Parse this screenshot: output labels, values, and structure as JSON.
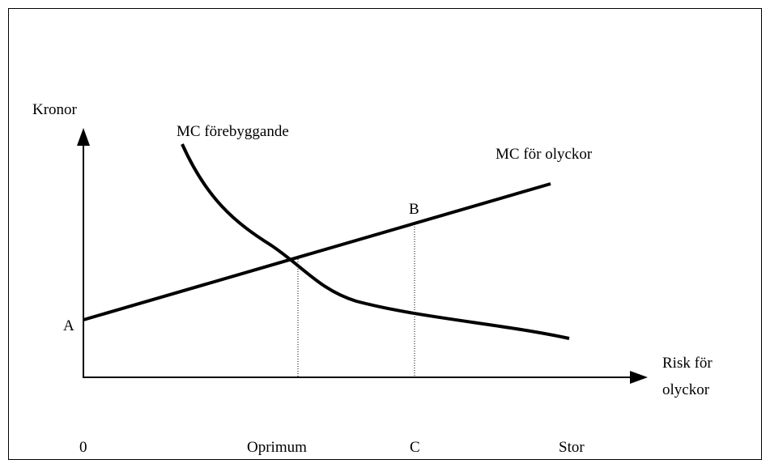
{
  "axes": {
    "y_label": "Kronor",
    "x_label_lines": [
      "Risk för",
      "olyckor"
    ]
  },
  "curves": {
    "prevention": "MC förebyggande",
    "accidents": "MC för olyckor"
  },
  "points": {
    "a": "A",
    "b": "B"
  },
  "x_labels": [
    "0",
    "Oprimum",
    "C",
    "Stor"
  ]
}
